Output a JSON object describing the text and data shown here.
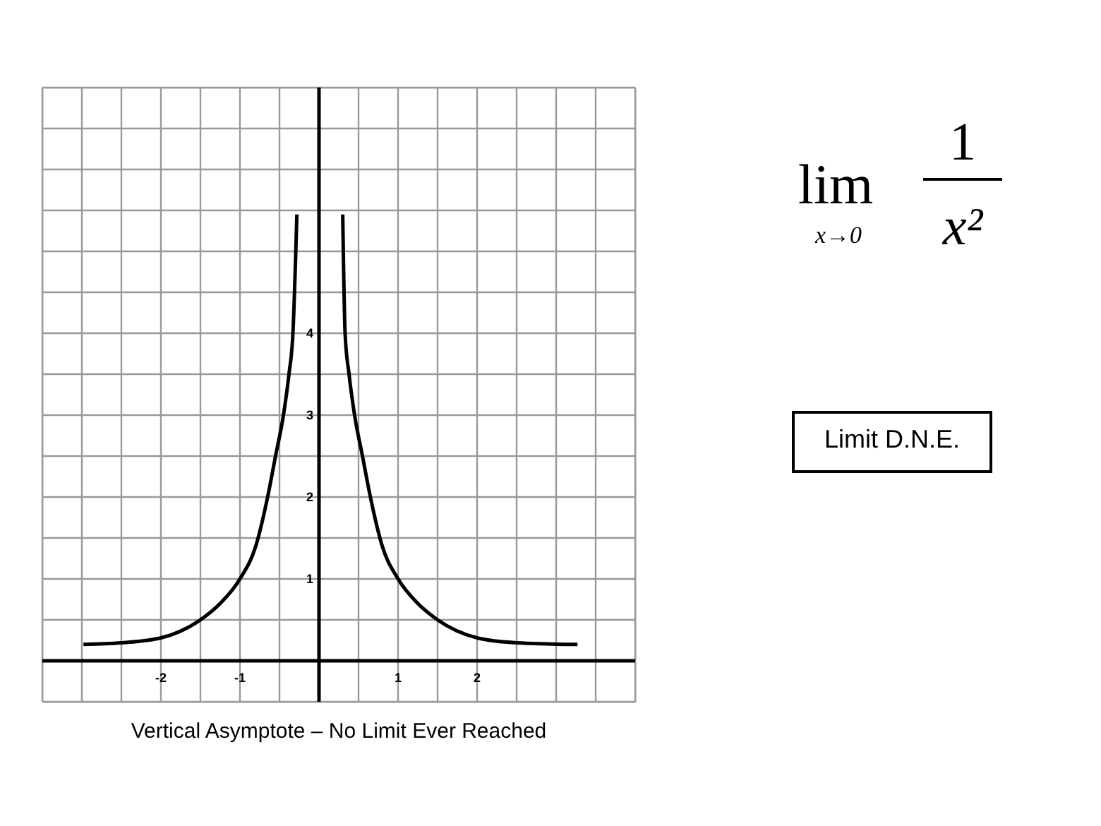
{
  "chart_data": {
    "type": "line",
    "title": "Vertical Asymptote – No Limit Ever Reached",
    "annotations": [
      "lim",
      "x→0",
      "1",
      "x²",
      "Limit D.N.E."
    ],
    "series": [
      {
        "color": "#000000",
        "x": [
          -2.98,
          -2.5,
          -2,
          -1.5,
          -1.25,
          -1,
          -0.8,
          -0.65,
          -0.55,
          -0.45,
          -0.38,
          -0.33,
          -0.28
        ],
        "values": [
          0.2,
          0.22,
          0.28,
          0.5,
          0.7,
          1.0,
          1.4,
          2,
          2.5,
          3,
          3.5,
          4,
          5.45
        ]
      },
      {
        "color": "#000000",
        "x": [
          0.3,
          0.33,
          0.38,
          0.45,
          0.55,
          0.65,
          0.8,
          1,
          1.25,
          1.5,
          2,
          2.5,
          3.27
        ],
        "values": [
          5.45,
          4,
          3.5,
          3,
          2.5,
          2,
          1.4,
          1.0,
          0.7,
          0.5,
          0.28,
          0.22,
          0.2
        ]
      }
    ],
    "xlim": [
      -3.5,
      4
    ],
    "ylim": [
      -0.5,
      7
    ],
    "xticks": [
      {
        "value": -3.5,
        "label": null
      },
      {
        "value": -3,
        "label": null
      },
      {
        "value": -2.5,
        "label": null
      },
      -2,
      {
        "value": -1.5,
        "label": null
      },
      -1,
      {
        "value": -0.5,
        "label": null
      },
      {
        "value": 0,
        "label": null
      },
      {
        "value": 0.5,
        "label": null
      },
      1,
      {
        "value": 1.5,
        "label": null
      },
      2,
      {
        "value": 2.5,
        "label": null
      },
      {
        "value": 3,
        "label": null
      },
      {
        "value": 3.5,
        "label": null
      },
      {
        "value": 4,
        "label": null
      }
    ],
    "yticks": [
      {
        "value": -0.5,
        "label": null
      },
      {
        "value": 0,
        "label": null
      },
      {
        "value": 0.5,
        "label": null
      },
      1,
      {
        "value": 1.5,
        "label": null
      },
      2,
      {
        "value": 2.5,
        "label": null
      },
      3,
      {
        "value": 3.5,
        "label": null
      },
      4,
      {
        "value": 4.5,
        "label": null
      },
      {
        "value": 5,
        "label": null
      },
      {
        "value": 5.5,
        "label": null
      },
      {
        "value": 6,
        "label": null
      },
      {
        "value": 6.5,
        "label": null
      },
      {
        "value": 7,
        "label": null
      }
    ],
    "grid": true,
    "marker": "none",
    "line_style": "solid"
  }
}
